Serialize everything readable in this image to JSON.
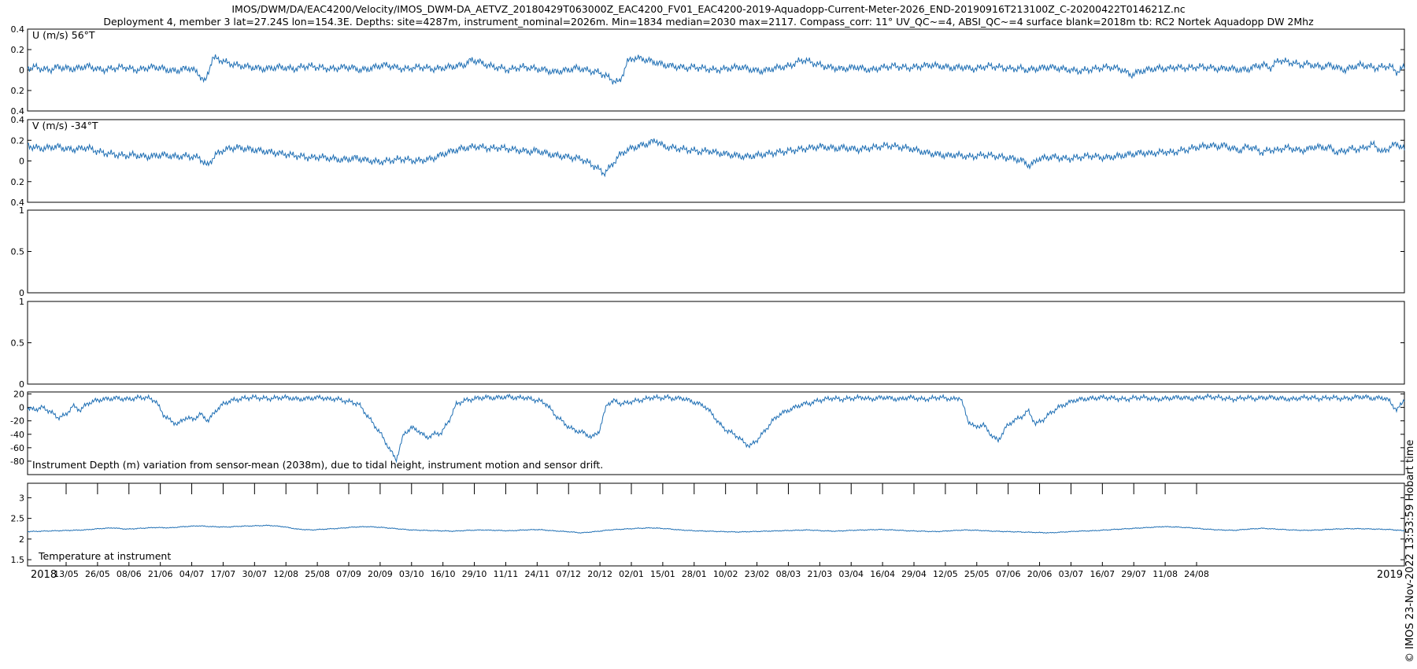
{
  "title_line1": "IMOS/DWM/DA/EAC4200/Velocity/IMOS_DWM-DA_AETVZ_20180429T063000Z_EAC4200_FV01_EAC4200-2019-Aquadopp-Current-Meter-2026_END-20190916T213100Z_C-20200422T014621Z.nc",
  "title_line2": "Deployment 4, member 3 lat=27.24S lon=154.3E. Depths: site=4287m, instrument_nominal=2026m. Min=1834 median=2030 max=2117. Compass_corr: 11° UV_QC~=4, ABSI_QC~=4 surface blank=2018m tb: RC2 Nortek Aquadopp DW 2Mhz",
  "copyright": "© IMOS 23-Nov-2022 13:53:59 Hobart time",
  "colors": {
    "line": "#1f6fb4",
    "axes": "#000000"
  },
  "chart_data": [
    {
      "type": "line",
      "label": "U (m/s) 56°T",
      "ylim": [
        -0.4,
        0.4
      ],
      "yticks": [
        0.4,
        0.2,
        0,
        -0.2,
        -0.4
      ],
      "yticklabels": [
        "0.4",
        "0.2",
        "0",
        "0.2",
        "0.4"
      ],
      "series": [
        {
          "values": [
            0.02,
            0.03,
            0.01,
            0.0,
            0.03,
            0.02,
            0.01,
            0.02,
            0.04,
            0.02,
            0.0,
            0.01,
            0.02,
            0.03,
            0.01,
            0.0,
            0.02,
            0.03,
            0.02,
            0.0,
            -0.01,
            0.01,
            0.02,
            -0.03,
            -0.12,
            0.12,
            0.1,
            0.07,
            0.05,
            0.04,
            0.03,
            0.02,
            0.01,
            0.02,
            0.03,
            0.02,
            0.01,
            0.03,
            0.04,
            0.03,
            0.02,
            0.01,
            0.02,
            0.03,
            0.02,
            0.0,
            0.01,
            0.03,
            0.05,
            0.04,
            0.02,
            0.01,
            0.02,
            0.03,
            0.02,
            0.01,
            0.02,
            0.03,
            0.04,
            0.05,
            0.1,
            0.08,
            0.05,
            0.03,
            0.02,
            0.0,
            0.02,
            0.03,
            0.02,
            0.01,
            0.0,
            -0.02,
            -0.01,
            0.0,
            0.02,
            0.01,
            -0.01,
            -0.02,
            -0.05,
            -0.1,
            -0.12,
            0.08,
            0.12,
            0.11,
            0.09,
            0.07,
            0.05,
            0.04,
            0.03,
            0.02,
            0.03,
            0.02,
            0.01,
            0.0,
            0.01,
            0.02,
            0.03,
            0.02,
            0.0,
            -0.01,
            0.0,
            0.02,
            0.03,
            0.04,
            0.08,
            0.1,
            0.07,
            0.05,
            0.03,
            0.02,
            0.01,
            0.02,
            0.03,
            0.01,
            0.0,
            0.02,
            0.03,
            0.04,
            0.03,
            0.02,
            0.03,
            0.04,
            0.05,
            0.04,
            0.03,
            0.02,
            0.03,
            0.02,
            0.01,
            0.03,
            0.04,
            0.03,
            0.02,
            0.01,
            0.02,
            0.0,
            0.01,
            0.02,
            0.03,
            0.02,
            0.01,
            0.0,
            -0.01,
            0.0,
            0.01,
            0.02,
            0.03,
            0.02,
            0.0,
            -0.05,
            -0.02,
            0.0,
            0.01,
            0.02,
            0.01,
            0.03,
            0.02,
            0.02,
            0.03,
            0.03,
            0.02,
            0.01,
            0.02,
            0.01,
            0.0,
            0.01,
            0.04,
            0.05,
            0.02,
            0.1,
            0.08,
            0.07,
            0.05,
            0.06,
            0.04,
            0.03,
            0.05,
            0.02,
            0.0,
            0.03,
            0.05,
            0.04,
            0.02,
            0.03,
            0.04,
            -0.02,
            0.03
          ]
        }
      ]
    },
    {
      "type": "line",
      "label": "V (m/s) -34°T",
      "ylim": [
        -0.4,
        0.4
      ],
      "yticks": [
        0.4,
        0.2,
        0,
        -0.2,
        -0.4
      ],
      "yticklabels": [
        "0.4",
        "0.2",
        "0",
        "0.2",
        "0.4"
      ],
      "series": [
        {
          "values": [
            0.15,
            0.13,
            0.12,
            0.13,
            0.14,
            0.12,
            0.11,
            0.12,
            0.13,
            0.1,
            0.08,
            0.07,
            0.06,
            0.05,
            0.06,
            0.05,
            0.04,
            0.05,
            0.06,
            0.05,
            0.04,
            0.05,
            0.04,
            0.03,
            -0.05,
            0.05,
            0.1,
            0.12,
            0.13,
            0.12,
            0.11,
            0.1,
            0.09,
            0.08,
            0.07,
            0.06,
            0.05,
            0.04,
            0.03,
            0.04,
            0.03,
            0.02,
            0.01,
            0.02,
            0.03,
            0.01,
            0.0,
            -0.01,
            0.0,
            0.01,
            0.02,
            0.01,
            0.0,
            0.01,
            0.02,
            0.05,
            0.08,
            0.1,
            0.12,
            0.13,
            0.14,
            0.13,
            0.12,
            0.13,
            0.12,
            0.11,
            0.1,
            0.09,
            0.1,
            0.08,
            0.06,
            0.05,
            0.04,
            0.03,
            0.02,
            -0.02,
            -0.06,
            -0.12,
            -0.05,
            0.05,
            0.1,
            0.13,
            0.15,
            0.17,
            0.2,
            0.14,
            0.13,
            0.12,
            0.11,
            0.1,
            0.09,
            0.1,
            0.08,
            0.07,
            0.06,
            0.05,
            0.04,
            0.05,
            0.06,
            0.07,
            0.08,
            0.09,
            0.1,
            0.11,
            0.12,
            0.13,
            0.14,
            0.13,
            0.12,
            0.13,
            0.12,
            0.11,
            0.12,
            0.13,
            0.14,
            0.15,
            0.14,
            0.13,
            0.12,
            0.1,
            0.08,
            0.07,
            0.06,
            0.05,
            0.06,
            0.05,
            0.04,
            0.05,
            0.06,
            0.05,
            0.04,
            0.03,
            0.02,
            0.0,
            -0.05,
            0.02,
            0.03,
            0.04,
            0.03,
            0.02,
            0.03,
            0.04,
            0.05,
            0.04,
            0.03,
            0.04,
            0.05,
            0.06,
            0.07,
            0.08,
            0.07,
            0.08,
            0.09,
            0.08,
            0.1,
            0.11,
            0.13,
            0.14,
            0.15,
            0.14,
            0.15,
            0.12,
            0.1,
            0.14,
            0.12,
            0.08,
            0.11,
            0.1,
            0.13,
            0.12,
            0.1,
            0.11,
            0.14,
            0.13,
            0.13,
            0.08,
            0.1,
            0.12,
            0.11,
            0.14,
            0.16,
            0.08,
            0.13,
            0.17,
            0.11
          ]
        }
      ]
    },
    {
      "type": "line",
      "label": "",
      "ylim": [
        0,
        1
      ],
      "yticks": [
        1,
        0.5,
        0
      ],
      "yticklabels": [
        "1",
        "0.5",
        "0"
      ],
      "series": []
    },
    {
      "type": "line",
      "label": "",
      "ylim": [
        0,
        1
      ],
      "yticks": [
        1,
        0.5,
        0
      ],
      "yticklabels": [
        "1",
        "0.5",
        "0"
      ],
      "series": []
    },
    {
      "type": "line",
      "label": "Instrument Depth (m) variation from sensor-mean (2038m), due to tidal height, instrument motion and sensor drift.",
      "ylim": [
        -100,
        23
      ],
      "yticks": [
        20,
        0,
        -20,
        -40,
        -60,
        -80
      ],
      "yticklabels": [
        "20",
        "0",
        "-20",
        "-40",
        "-60",
        "-80"
      ],
      "series": [
        {
          "values": [
            -2,
            -3,
            0,
            -6,
            -15,
            -12,
            2,
            -4,
            6,
            10,
            12,
            13,
            14,
            12,
            13,
            15,
            14,
            10,
            -10,
            -20,
            -25,
            -15,
            -18,
            -10,
            -20,
            -5,
            5,
            10,
            12,
            14,
            15,
            14,
            13,
            14,
            15,
            14,
            12,
            13,
            14,
            15,
            12,
            13,
            10,
            8,
            5,
            -10,
            -25,
            -40,
            -60,
            -78,
            -40,
            -30,
            -35,
            -45,
            -40,
            -38,
            -20,
            5,
            10,
            12,
            14,
            15,
            14,
            15,
            16,
            14,
            15,
            12,
            10,
            5,
            -10,
            -20,
            -30,
            -35,
            -38,
            -45,
            -35,
            5,
            10,
            5,
            8,
            10,
            12,
            15,
            14,
            15,
            13,
            14,
            10,
            6,
            2,
            -10,
            -25,
            -35,
            -40,
            -50,
            -58,
            -48,
            -35,
            -20,
            -10,
            -5,
            0,
            5,
            6,
            10,
            12,
            14,
            12,
            13,
            14,
            15,
            12,
            14,
            15,
            13,
            12,
            15,
            14,
            12,
            13,
            15,
            14,
            12,
            15,
            -20,
            -30,
            -25,
            -40,
            -50,
            -30,
            -20,
            -15,
            -5,
            -25,
            -18,
            -8,
            0,
            5,
            10,
            12,
            13,
            14,
            15,
            14,
            13,
            12,
            14,
            15,
            14,
            12,
            13,
            14,
            15,
            14,
            13,
            15,
            16,
            15,
            14,
            12,
            13,
            15,
            13,
            14,
            15,
            14,
            13,
            12,
            14,
            15,
            14,
            13,
            15,
            14,
            13,
            14,
            16,
            15,
            13,
            15,
            10,
            -5,
            13
          ]
        }
      ]
    },
    {
      "type": "line",
      "label": "Temperature at instrument",
      "ylim": [
        1.35,
        3.35
      ],
      "yticks": [
        3,
        2.5,
        2,
        1.5
      ],
      "yticklabels": [
        "3",
        "2.5",
        "2",
        "1.5"
      ],
      "series": [
        {
          "values": [
            2.18,
            2.19,
            2.2,
            2.21,
            2.22,
            2.25,
            2.27,
            2.24,
            2.26,
            2.28,
            2.27,
            2.3,
            2.32,
            2.3,
            2.29,
            2.31,
            2.32,
            2.33,
            2.3,
            2.24,
            2.22,
            2.24,
            2.26,
            2.29,
            2.3,
            2.28,
            2.25,
            2.22,
            2.21,
            2.2,
            2.19,
            2.21,
            2.22,
            2.21,
            2.2,
            2.22,
            2.23,
            2.2,
            2.18,
            2.15,
            2.18,
            2.22,
            2.24,
            2.26,
            2.27,
            2.25,
            2.22,
            2.2,
            2.19,
            2.18,
            2.17,
            2.18,
            2.19,
            2.2,
            2.21,
            2.22,
            2.2,
            2.19,
            2.21,
            2.22,
            2.23,
            2.22,
            2.2,
            2.19,
            2.18,
            2.2,
            2.22,
            2.21,
            2.19,
            2.18,
            2.17,
            2.16,
            2.15,
            2.17,
            2.19,
            2.2,
            2.22,
            2.24,
            2.26,
            2.28,
            2.3,
            2.29,
            2.27,
            2.24,
            2.22,
            2.21,
            2.24,
            2.26,
            2.24,
            2.22,
            2.21,
            2.22,
            2.24,
            2.25,
            2.25,
            2.24,
            2.23,
            2.2
          ]
        }
      ]
    }
  ],
  "xaxis": {
    "tick_labels": [
      "13/05",
      "26/05",
      "08/06",
      "21/06",
      "04/07",
      "17/07",
      "30/07",
      "12/08",
      "25/08",
      "07/09",
      "20/09",
      "03/10",
      "16/10",
      "29/10",
      "11/11",
      "24/11",
      "07/12",
      "20/12",
      "02/01",
      "15/01",
      "28/01",
      "10/02",
      "23/02",
      "08/03",
      "21/03",
      "03/04",
      "16/04",
      "29/04",
      "12/05",
      "25/05",
      "07/06",
      "20/06",
      "03/07",
      "16/07",
      "29/07",
      "11/08",
      "24/08"
    ],
    "year_start": "2018",
    "year_end": "2019"
  }
}
